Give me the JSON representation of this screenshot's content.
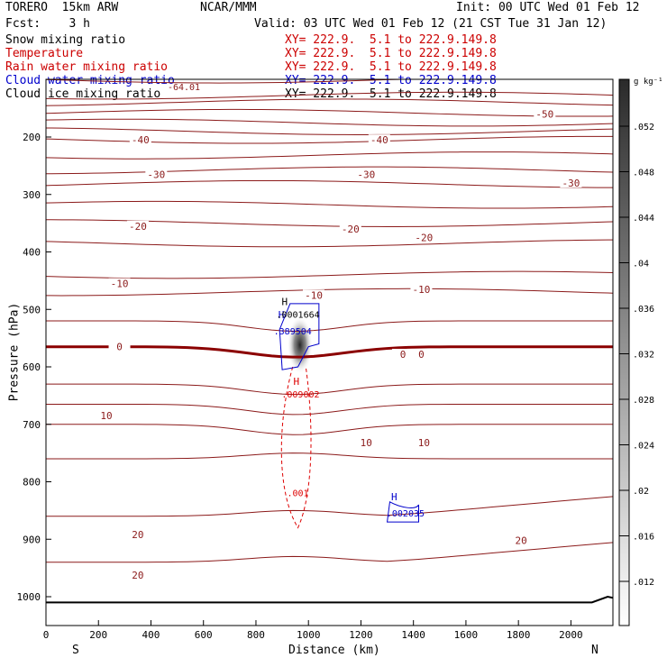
{
  "header": {
    "model": "TORERO  15km ARW",
    "org": "NCAR/MMM",
    "init": "Init: 00 UTC Wed 01 Feb 12",
    "fcst": "Fcst:    3 h",
    "valid": "Valid: 03 UTC Wed 01 Feb 12 (21 CST Tue 31 Jan 12)"
  },
  "fields": [
    {
      "name": "Snow mixing ratio",
      "xy": "XY= 222.9.  5.1 to 222.9.149.8",
      "color": "#000000"
    },
    {
      "name": "Temperature",
      "xy": "XY= 222.9.  5.1 to 222.9.149.8",
      "color": "#cc0000"
    },
    {
      "name": "Rain water mixing ratio",
      "xy": "XY= 222.9.  5.1 to 222.9.149.8",
      "color": "#cc0000"
    },
    {
      "name": "Cloud water mixing ratio",
      "xy": "XY= 222.9.  5.1 to 222.9.149.8",
      "color": "#0000cc"
    },
    {
      "name": "Cloud ice mixing ratio",
      "xy": "XY= 222.9.  5.1 to 222.9.149.8",
      "color": "#000000"
    }
  ],
  "chart_data": {
    "type": "contour-cross-section",
    "xlabel": "Distance (km)",
    "ylabel": "Pressure (hPa)",
    "xlim": [
      0,
      2160
    ],
    "ylim": [
      1050,
      100
    ],
    "x_ticks": [
      "0",
      "200",
      "400",
      "600",
      "800",
      "1000",
      "1200",
      "1400",
      "1600",
      "1800",
      "2000"
    ],
    "y_ticks": [
      "200",
      "300",
      "400",
      "500",
      "600",
      "700",
      "800",
      "900",
      "1000"
    ],
    "end_labels": {
      "left": "S",
      "right": "N"
    },
    "temperature_isotherms_C": {
      "interval": 5,
      "labeled": [
        {
          "value": "-50",
          "x": 1900,
          "p": 160
        },
        {
          "value": "-40",
          "x": 360,
          "p": 205
        },
        {
          "value": "-40",
          "x": 1270,
          "p": 205
        },
        {
          "value": "-30",
          "x": 420,
          "p": 265
        },
        {
          "value": "-30",
          "x": 1220,
          "p": 265
        },
        {
          "value": "-30",
          "x": 2000,
          "p": 280
        },
        {
          "value": "-20",
          "x": 350,
          "p": 355
        },
        {
          "value": "-20",
          "x": 1160,
          "p": 360
        },
        {
          "value": "-20",
          "x": 1440,
          "p": 375
        },
        {
          "value": "-10",
          "x": 280,
          "p": 455
        },
        {
          "value": "-10",
          "x": 1020,
          "p": 475
        },
        {
          "value": "-10",
          "x": 1430,
          "p": 465
        },
        {
          "value": "0",
          "x": 280,
          "p": 565
        },
        {
          "value": "0",
          "x": 1360,
          "p": 578
        },
        {
          "value": "0",
          "x": 1430,
          "p": 578
        },
        {
          "value": "10",
          "x": 230,
          "p": 685
        },
        {
          "value": "10",
          "x": 1220,
          "p": 732
        },
        {
          "value": "10",
          "x": 1440,
          "p": 732
        },
        {
          "value": "20",
          "x": 350,
          "p": 892
        },
        {
          "value": "20",
          "x": 1810,
          "p": 902
        },
        {
          "value": "20",
          "x": 350,
          "p": 962
        }
      ],
      "top_label": "-64.01"
    },
    "rain_water": [
      {
        "type": "max",
        "label": "H",
        "value": ".009002",
        "x": 970,
        "p": 650
      },
      {
        "type": "contour",
        "value": ".001",
        "x": 960,
        "p": 822
      }
    ],
    "cloud_water": [
      {
        "type": "max",
        "label": "H",
        "value": ".389504",
        "x": 940,
        "p": 540
      },
      {
        "type": "max",
        "label": "H",
        "value": ".002035",
        "x": 1370,
        "p": 857
      }
    ],
    "snow": [
      {
        "type": "max",
        "label": "H",
        "value": ".0001664",
        "x": 960,
        "p": 508
      }
    ],
    "colorbar": {
      "unit": "g kg⁻¹",
      "ticks": [
        ".052",
        ".048",
        ".044",
        ".04",
        ".036",
        ".032",
        ".028",
        ".024",
        ".02",
        ".016",
        ".012"
      ]
    },
    "terrain_surface_hPa": 1010
  }
}
